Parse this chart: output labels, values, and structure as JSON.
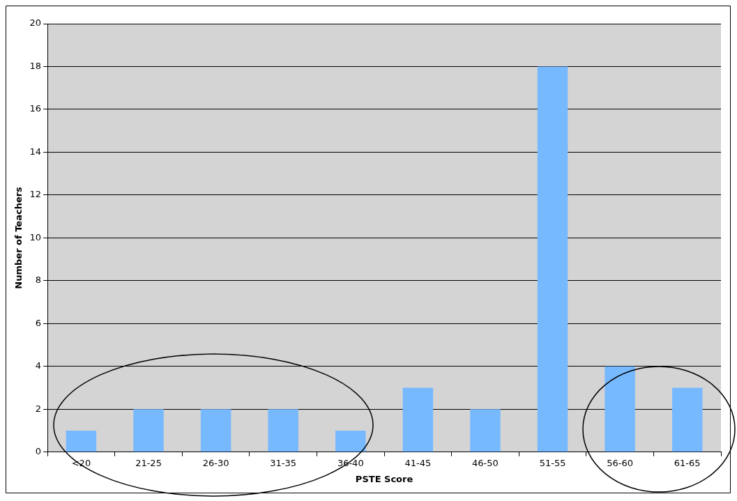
{
  "chart_data": {
    "type": "bar",
    "xlabel": "PSTE Score",
    "ylabel": "Number of Teachers",
    "categories": [
      "<20",
      "21-25",
      "26-30",
      "31-35",
      "36-40",
      "41-45",
      "46-50",
      "51-55",
      "56-60",
      "61-65"
    ],
    "values": [
      1,
      2,
      2,
      2,
      1,
      3,
      2,
      18,
      4,
      3
    ],
    "color": "#77b9ff",
    "ylim": [
      0,
      20
    ],
    "yticks": [
      0,
      2,
      4,
      6,
      8,
      10,
      12,
      14,
      16,
      18,
      20
    ],
    "grid": "y",
    "legend": false
  }
}
